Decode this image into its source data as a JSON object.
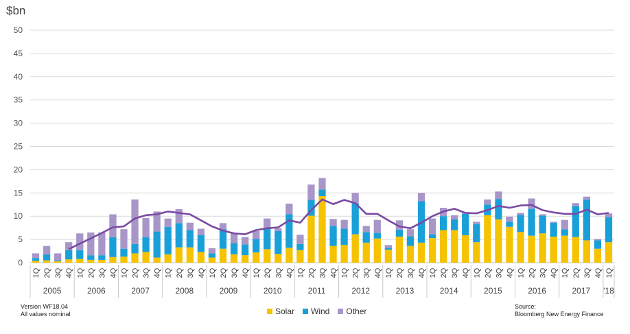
{
  "colors": {
    "solar": "#f6c300",
    "wind": "#1aa0d8",
    "other": "#a896c8",
    "total": "#7a4aa3",
    "grid": "#d9d9d9"
  },
  "footer": {
    "version": "Version WF18.04",
    "note": "All values nominal"
  },
  "source": {
    "label": "Source:",
    "text": "Bloomberg New Energy Finance"
  },
  "chart_data": {
    "type": "bar",
    "stacked": true,
    "ylabel": "$bn",
    "ylim": [
      0,
      50
    ],
    "yticks": [
      0,
      5,
      10,
      15,
      20,
      25,
      30,
      35,
      40,
      45,
      50
    ],
    "grid": true,
    "legend_position": "bottom-center",
    "years": [
      "2005",
      "2006",
      "2007",
      "2008",
      "2009",
      "2010",
      "2011",
      "2012",
      "2013",
      "2014",
      "2015",
      "2016",
      "2017",
      "'18"
    ],
    "categories": [
      "1Q",
      "2Q",
      "3Q",
      "4Q",
      "1Q",
      "2Q",
      "3Q",
      "4Q",
      "1Q",
      "2Q",
      "3Q",
      "4Q",
      "1Q",
      "2Q",
      "3Q",
      "4Q",
      "1Q",
      "2Q",
      "3Q",
      "4Q",
      "1Q",
      "2Q",
      "3Q",
      "4Q",
      "1Q",
      "2Q",
      "3Q",
      "4Q",
      "1Q",
      "2Q",
      "3Q",
      "4Q",
      "1Q",
      "2Q",
      "3Q",
      "4Q",
      "1Q",
      "2Q",
      "3Q",
      "4Q",
      "1Q",
      "2Q",
      "3Q",
      "4Q",
      "1Q",
      "2Q",
      "3Q",
      "4Q",
      "1Q",
      "2Q",
      "3Q",
      "4Q",
      "1Q"
    ],
    "series": [
      {
        "name": "Solar",
        "values": [
          0.4,
          0.5,
          0.3,
          0.7,
          0.8,
          0.6,
          0.6,
          1.2,
          1.3,
          2.0,
          2.3,
          1.1,
          1.8,
          3.3,
          3.3,
          2.3,
          1.1,
          3.0,
          1.8,
          1.6,
          2.2,
          2.9,
          1.9,
          3.2,
          2.7,
          10.1,
          14.3,
          3.6,
          3.8,
          6.1,
          4.3,
          5.2,
          2.8,
          5.6,
          3.6,
          4.3,
          5.3,
          7.0,
          7.0,
          5.9,
          4.4,
          10.2,
          9.3,
          7.7,
          6.6,
          5.8,
          6.3,
          5.6,
          5.8,
          5.5,
          4.8,
          3.0,
          4.4
        ]
      },
      {
        "name": "Wind",
        "values": [
          0.6,
          1.3,
          0.2,
          2.0,
          1.9,
          1.0,
          1.0,
          4.3,
          1.7,
          2.0,
          3.2,
          5.6,
          5.9,
          5.2,
          3.7,
          3.6,
          0.9,
          4.2,
          2.4,
          2.3,
          2.9,
          4.5,
          4.9,
          7.2,
          1.3,
          3.4,
          1.4,
          4.3,
          3.5,
          6.7,
          2.3,
          1.2,
          0.4,
          1.5,
          2.1,
          8.9,
          0.8,
          3.0,
          2.3,
          4.6,
          3.9,
          2.3,
          4.4,
          1.1,
          3.7,
          5.8,
          3.8,
          3.0,
          1.4,
          6.7,
          8.8,
          1.8,
          5.4
        ]
      },
      {
        "name": "Other",
        "values": [
          1.0,
          1.8,
          1.5,
          1.7,
          3.6,
          4.9,
          4.9,
          4.9,
          4.2,
          9.6,
          4.1,
          4.3,
          1.8,
          3.0,
          1.6,
          1.4,
          1.1,
          1.3,
          2.1,
          1.6,
          1.7,
          2.1,
          0.6,
          2.3,
          2.0,
          3.3,
          2.5,
          1.5,
          1.9,
          2.2,
          1.3,
          2.8,
          0.6,
          2.0,
          1.5,
          1.8,
          3.4,
          1.8,
          0.9,
          0.4,
          0.5,
          1.1,
          1.6,
          1.1,
          0.4,
          2.2,
          0.3,
          0.2,
          2.0,
          0.6,
          0.6,
          0.3,
          0.8
        ]
      },
      {
        "name": "total-trend",
        "values": [
          null,
          null,
          null,
          2.9,
          4.1,
          5.2,
          6.4,
          7.6,
          7.8,
          9.5,
          10.2,
          10.4,
          11.0,
          10.7,
          10.4,
          9.1,
          7.8,
          6.9,
          6.3,
          6.1,
          7.0,
          7.4,
          7.6,
          9.1,
          8.6,
          11.3,
          13.6,
          12.6,
          13.5,
          12.8,
          10.5,
          10.5,
          9.1,
          7.8,
          7.4,
          8.6,
          10.0,
          11.0,
          11.6,
          10.7,
          10.6,
          11.3,
          12.2,
          11.8,
          12.3,
          12.4,
          11.3,
          10.8,
          10.5,
          10.5,
          11.4,
          10.4,
          10.7
        ]
      }
    ]
  }
}
